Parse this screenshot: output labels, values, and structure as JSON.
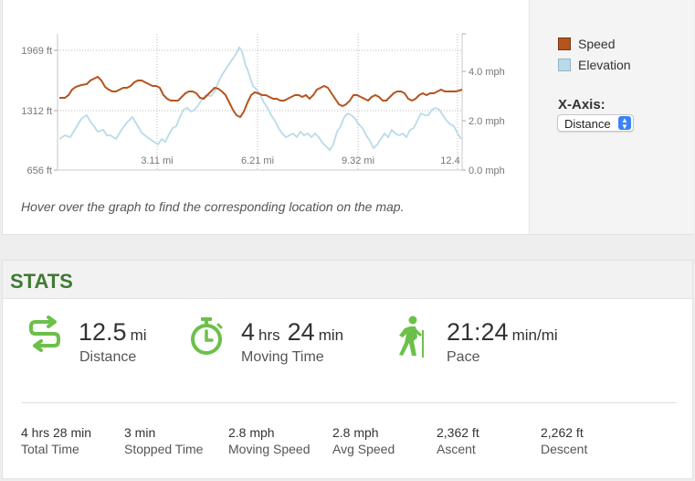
{
  "graph": {
    "left_axis_labels": [
      "1969 ft",
      "1312 ft",
      "656 ft"
    ],
    "right_axis_labels": [
      "4.0 mph",
      "2.0 mph",
      "0.0 mph"
    ],
    "x_tick_labels": [
      "3.11 mi",
      "6.21 mi",
      "9.32 mi",
      "12.4"
    ],
    "hover_note": "Hover over the graph to find the corresponding location on the map.",
    "legend": [
      {
        "label": "Speed",
        "color": "#b5541d"
      },
      {
        "label": "Elevation",
        "color": "#b9dbe8"
      }
    ],
    "xaxis_label": "X-Axis:",
    "xaxis_value": "Distance"
  },
  "stats": {
    "title": "STATS",
    "big": [
      {
        "icon": "route-icon",
        "parts": [
          {
            "num": "12.5",
            "unit": "mi"
          }
        ],
        "label": "Distance"
      },
      {
        "icon": "stopwatch-icon",
        "parts": [
          {
            "num": "4",
            "unit": "hrs"
          },
          {
            "num": "24",
            "unit": "min"
          }
        ],
        "label": "Moving Time"
      },
      {
        "icon": "hiker-icon",
        "parts": [
          {
            "num": "21:24",
            "unit": "min/mi"
          }
        ],
        "label": "Pace"
      }
    ],
    "small": [
      {
        "value": "4 hrs 28 min",
        "label": "Total Time"
      },
      {
        "value": "3 min",
        "label": "Stopped Time"
      },
      {
        "value": "2.8 mph",
        "label": "Moving Speed"
      },
      {
        "value": "2.8 mph",
        "label": "Avg Speed"
      },
      {
        "value": "2,362 ft",
        "label": "Ascent"
      },
      {
        "value": "2,262 ft",
        "label": "Descent"
      }
    ],
    "icon_color": "#6cc04a"
  }
}
